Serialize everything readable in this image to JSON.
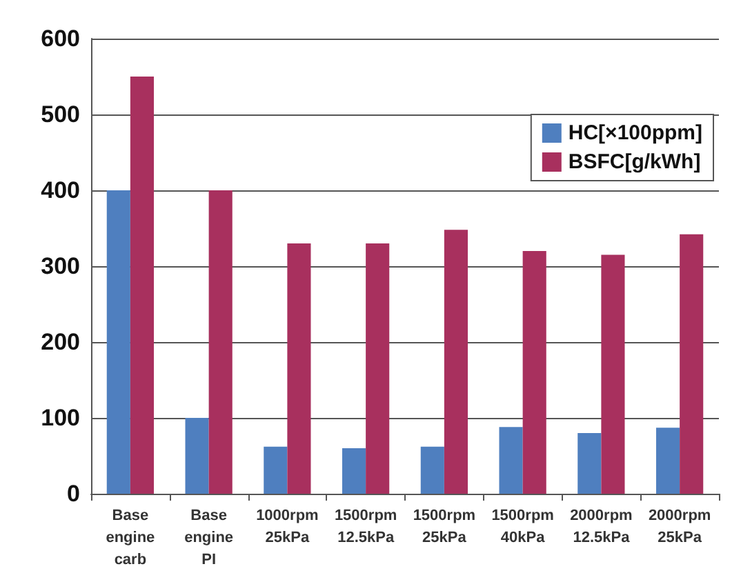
{
  "chart_data": {
    "type": "bar",
    "categories": [
      "Base\nengine\ncarb",
      "Base\nengine\nPI",
      "1000rpm\n25kPa",
      "1500rpm\n12.5kPa",
      "1500rpm\n25kPa",
      "1500rpm\n40kPa",
      "2000rpm\n12.5kPa",
      "2000rpm\n25kPa"
    ],
    "series": [
      {
        "name": "HC[×100ppm]",
        "color": "#4f7fbf",
        "values": [
          400,
          100,
          62,
          60,
          62,
          88,
          80,
          87
        ]
      },
      {
        "name": "BSFC[g/kWh]",
        "color": "#a8305e",
        "values": [
          550,
          400,
          330,
          330,
          348,
          320,
          315,
          342
        ]
      }
    ],
    "ylim": [
      0,
      600
    ],
    "yticks": [
      0,
      100,
      200,
      300,
      400,
      500,
      600
    ],
    "grid": "y",
    "legend": "top right"
  }
}
